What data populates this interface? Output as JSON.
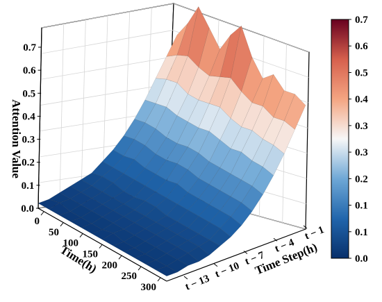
{
  "chart_data": {
    "type": "surface-3d",
    "title": "",
    "zlabel": "Attention Value",
    "xlabel": "Time(h)",
    "ylabel": "Time Step(h)",
    "x_ticks": [
      "0",
      "50",
      "100",
      "150",
      "200",
      "250",
      "300"
    ],
    "y_ticks": [
      "t − 1",
      "t − 4",
      "t − 7",
      "t − 10",
      "t − 13"
    ],
    "z_ticks": [
      "0.0",
      "0.1",
      "0.2",
      "0.3",
      "0.4",
      "0.5",
      "0.6",
      "0.7"
    ],
    "colorbar_ticks": [
      "0.0",
      "0.1",
      "0.1",
      "0.2",
      "0.3",
      "0.3",
      "0.4",
      "0.5",
      "0.6",
      "0.7"
    ],
    "xlim": [
      0,
      300
    ],
    "zlim": [
      0,
      0.7
    ],
    "grid": true,
    "colormap": [
      "#08306b",
      "#2166ac",
      "#6fa8d6",
      "#f7f7f7",
      "#f4a582",
      "#d6604d",
      "#67001f"
    ],
    "x": [
      0,
      25,
      50,
      75,
      100,
      125,
      150,
      175,
      200,
      225,
      250,
      275,
      300
    ],
    "time_steps": [
      "t−1",
      "t−2",
      "t−3",
      "t−4",
      "t−5",
      "t−6",
      "t−7",
      "t−8",
      "t−9",
      "t−10",
      "t−11",
      "t−12",
      "t−13",
      "t−14"
    ],
    "values": [
      [
        0.48,
        0.55,
        0.64,
        0.58,
        0.52,
        0.6,
        0.66,
        0.56,
        0.5,
        0.54,
        0.5,
        0.51,
        0.49
      ],
      [
        0.41,
        0.44,
        0.46,
        0.44,
        0.43,
        0.45,
        0.47,
        0.44,
        0.42,
        0.43,
        0.41,
        0.42,
        0.41
      ],
      [
        0.34,
        0.36,
        0.37,
        0.35,
        0.35,
        0.36,
        0.37,
        0.35,
        0.34,
        0.35,
        0.34,
        0.34,
        0.33
      ],
      [
        0.27,
        0.28,
        0.29,
        0.28,
        0.28,
        0.28,
        0.29,
        0.28,
        0.27,
        0.28,
        0.27,
        0.27,
        0.26
      ],
      [
        0.21,
        0.22,
        0.22,
        0.21,
        0.21,
        0.22,
        0.22,
        0.21,
        0.21,
        0.21,
        0.21,
        0.21,
        0.2
      ],
      [
        0.16,
        0.17,
        0.17,
        0.16,
        0.16,
        0.17,
        0.17,
        0.16,
        0.16,
        0.16,
        0.16,
        0.16,
        0.15
      ],
      [
        0.12,
        0.12,
        0.13,
        0.12,
        0.12,
        0.12,
        0.13,
        0.12,
        0.12,
        0.12,
        0.12,
        0.12,
        0.11
      ],
      [
        0.09,
        0.09,
        0.09,
        0.09,
        0.09,
        0.09,
        0.09,
        0.09,
        0.09,
        0.09,
        0.09,
        0.09,
        0.08
      ],
      [
        0.06,
        0.07,
        0.07,
        0.06,
        0.06,
        0.07,
        0.07,
        0.06,
        0.06,
        0.06,
        0.06,
        0.06,
        0.06
      ],
      [
        0.05,
        0.05,
        0.05,
        0.05,
        0.05,
        0.05,
        0.05,
        0.05,
        0.05,
        0.05,
        0.05,
        0.05,
        0.04
      ],
      [
        0.04,
        0.04,
        0.04,
        0.04,
        0.04,
        0.04,
        0.04,
        0.04,
        0.04,
        0.04,
        0.04,
        0.04,
        0.03
      ],
      [
        0.03,
        0.03,
        0.03,
        0.03,
        0.03,
        0.03,
        0.03,
        0.03,
        0.03,
        0.03,
        0.03,
        0.03,
        0.03
      ],
      [
        0.02,
        0.03,
        0.02,
        0.02,
        0.02,
        0.02,
        0.03,
        0.02,
        0.02,
        0.02,
        0.02,
        0.02,
        0.02
      ],
      [
        0.02,
        0.02,
        0.02,
        0.02,
        0.02,
        0.02,
        0.02,
        0.02,
        0.02,
        0.02,
        0.02,
        0.02,
        0.02
      ]
    ]
  }
}
